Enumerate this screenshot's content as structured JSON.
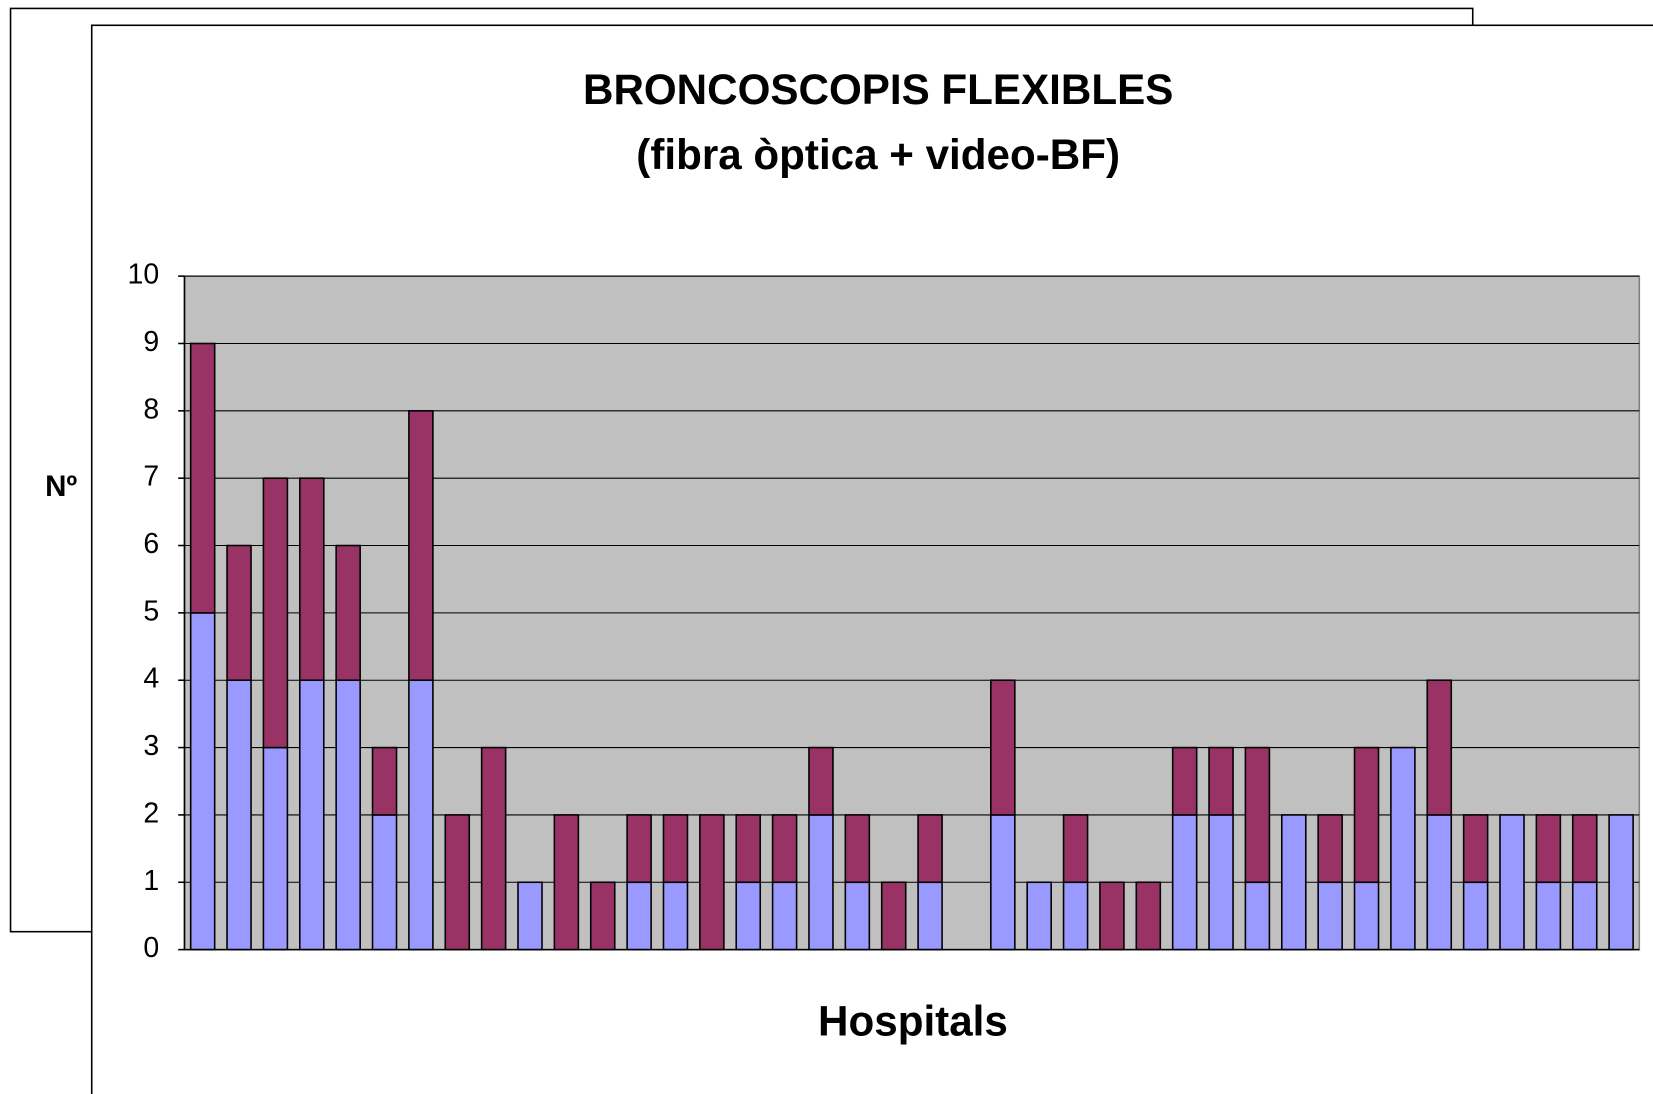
{
  "chart_data": {
    "type": "stacked_bar",
    "title": "BRONCOSCOPIS FLEXIBLES",
    "subtitle": "(fibra òptica + video-BF)",
    "y_label": "Nº",
    "x_label": "Hospitals",
    "categories": [
      null,
      null,
      null,
      null,
      null,
      null,
      null,
      null,
      null,
      null,
      null,
      null,
      null,
      null,
      null,
      null,
      null,
      null,
      null,
      null,
      null,
      null,
      null,
      null,
      null,
      null,
      null,
      null,
      null,
      null,
      null,
      null,
      null,
      null,
      null,
      null,
      null,
      null,
      null,
      null
    ],
    "series": [
      {
        "color": "#9999ff",
        "values": [
          5,
          4,
          3,
          4,
          4,
          2,
          4,
          0,
          0,
          1,
          0,
          0,
          1,
          1,
          0,
          1,
          1,
          2,
          1,
          0,
          1,
          null,
          2,
          1,
          1,
          0,
          0,
          2,
          2,
          1,
          2,
          1,
          1,
          3,
          2,
          1,
          2,
          1,
          1,
          2
        ]
      },
      {
        "color": "#993366",
        "values": [
          4,
          2,
          4,
          3,
          2,
          1,
          4,
          2,
          3,
          0,
          2,
          1,
          1,
          1,
          2,
          1,
          1,
          1,
          1,
          1,
          1,
          null,
          2,
          0,
          1,
          1,
          1,
          1,
          1,
          2,
          0,
          1,
          2,
          0,
          2,
          1,
          0,
          1,
          1,
          0
        ]
      }
    ],
    "ylim": [
      0,
      10
    ],
    "yticks": [
      0,
      1,
      2,
      3,
      4,
      5,
      6,
      7,
      8,
      9,
      10
    ],
    "grid": true,
    "plot_background": "#c0c0c0"
  }
}
